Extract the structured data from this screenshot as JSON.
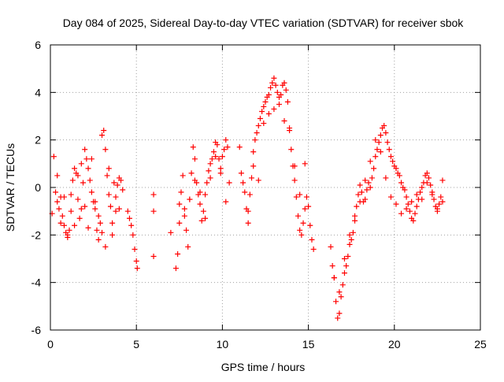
{
  "chart_data": {
    "type": "scatter",
    "title": "Day 084 of 2025, Sidereal Day-to-day VTEC variation (SDTVAR) for receiver sbok",
    "xlabel": "GPS time / hours",
    "ylabel": "SDTVAR / TECUs",
    "xlim": [
      0,
      25
    ],
    "ylim": [
      -6,
      6
    ],
    "x_ticks": [
      0,
      5,
      10,
      15,
      20,
      25
    ],
    "x_tick_labels": [
      "0",
      "5",
      "10",
      "15",
      "20",
      "25"
    ],
    "y_ticks": [
      -6,
      -4,
      -2,
      0,
      2,
      4,
      6
    ],
    "y_tick_labels": [
      "-6",
      "-4",
      "-2",
      "0",
      "2",
      "4",
      "6"
    ],
    "grid": true,
    "marker": "+",
    "color": "#ff0000",
    "series": [
      {
        "name": "SDTVAR",
        "x": [
          0.1,
          0.2,
          0.3,
          0.4,
          0.5,
          0.6,
          0.7,
          0.8,
          0.9,
          1.0,
          1.1,
          1.2,
          1.3,
          1.4,
          1.5,
          1.6,
          1.7,
          1.8,
          1.9,
          2.0,
          2.1,
          2.2,
          2.3,
          2.4,
          2.5,
          2.6,
          2.7,
          2.8,
          2.9,
          3.0,
          3.1,
          3.2,
          3.3,
          3.4,
          3.5,
          3.6,
          3.7,
          3.8,
          3.9,
          4.0,
          4.1,
          4.2,
          0.4,
          0.6,
          0.8,
          1.0,
          1.2,
          1.4,
          1.6,
          1.8,
          2.0,
          2.2,
          2.4,
          2.6,
          2.8,
          3.0,
          3.2,
          3.4,
          3.6,
          3.8,
          4.0,
          4.5,
          4.6,
          4.7,
          4.8,
          4.9,
          5.0,
          5.05,
          6.0,
          6.0,
          6.0,
          7.0,
          7.3,
          7.4,
          7.5,
          7.6,
          7.7,
          7.8,
          7.9,
          8.0,
          8.1,
          8.2,
          8.3,
          8.4,
          8.5,
          8.6,
          8.7,
          8.8,
          8.9,
          9.0,
          9.1,
          9.2,
          9.3,
          9.4,
          9.5,
          9.6,
          9.7,
          9.8,
          9.9,
          10.0,
          10.1,
          10.2,
          10.3,
          10.4,
          7.5,
          7.8,
          8.1,
          8.4,
          8.7,
          9.0,
          9.3,
          9.6,
          9.9,
          10.2,
          11.0,
          11.1,
          11.2,
          11.3,
          11.4,
          11.5,
          11.6,
          11.7,
          11.8,
          11.9,
          12.0,
          12.1,
          12.2,
          12.3,
          12.4,
          12.5,
          12.6,
          12.7,
          12.8,
          12.9,
          13.0,
          13.1,
          13.2,
          13.3,
          13.4,
          13.5,
          13.6,
          13.7,
          13.8,
          13.9,
          14.0,
          14.1,
          14.2,
          14.3,
          14.4,
          14.5,
          14.6,
          14.7,
          14.8,
          14.9,
          15.0,
          15.1,
          15.2,
          15.3,
          11.5,
          11.8,
          12.1,
          12.4,
          12.7,
          13.0,
          13.3,
          13.6,
          13.9,
          14.2,
          14.5,
          14.8,
          16.3,
          16.4,
          16.5,
          16.6,
          16.7,
          16.8,
          16.9,
          17.0,
          17.1,
          17.2,
          17.3,
          17.4,
          17.5,
          17.6,
          17.7,
          17.8,
          17.9,
          18.0,
          18.1,
          18.2,
          18.3,
          18.4,
          18.5,
          18.6,
          18.7,
          18.8,
          18.9,
          19.0,
          19.1,
          19.2,
          19.3,
          19.4,
          19.5,
          19.6,
          19.7,
          19.8,
          19.9,
          20.0,
          20.1,
          20.2,
          20.3,
          20.4,
          20.5,
          20.6,
          20.7,
          20.8,
          20.9,
          21.0,
          21.1,
          21.2,
          21.3,
          21.4,
          21.5,
          21.6,
          21.7,
          21.8,
          21.9,
          22.0,
          22.1,
          22.2,
          22.3,
          22.4,
          22.5,
          22.6,
          22.7,
          22.8,
          16.5,
          16.8,
          17.1,
          17.4,
          17.7,
          18.0,
          18.3,
          18.6,
          18.9,
          19.2,
          19.5,
          19.8,
          20.1,
          20.4,
          20.7,
          21.0,
          21.3,
          21.6,
          21.9,
          22.2,
          22.5,
          22.8
        ],
        "y": [
          -1.1,
          1.3,
          -0.2,
          -0.6,
          -0.9,
          -0.4,
          -1.2,
          -1.6,
          -1.9,
          -2.1,
          -1.8,
          -1.0,
          0.3,
          0.8,
          0.6,
          -0.5,
          -1.3,
          -0.9,
          0.2,
          1.6,
          1.2,
          0.8,
          0.3,
          -0.2,
          -0.6,
          -0.9,
          -1.8,
          -2.2,
          -1.5,
          2.2,
          2.4,
          1.6,
          0.5,
          -0.3,
          -0.8,
          -1.5,
          0.2,
          -0.4,
          0.1,
          -0.9,
          0.3,
          -0.1,
          0.5,
          -1.5,
          -0.4,
          -2.0,
          -0.3,
          -1.6,
          0.5,
          1.0,
          -0.8,
          -1.7,
          1.2,
          -0.6,
          -1.2,
          -1.9,
          -2.5,
          0.8,
          -2.0,
          -1.0,
          0.4,
          -1.0,
          -1.3,
          -1.6,
          -2.0,
          -2.6,
          -3.1,
          -3.4,
          -0.3,
          -1.0,
          -2.9,
          -1.9,
          -3.4,
          -2.8,
          -1.5,
          -0.2,
          0.5,
          -0.9,
          -1.8,
          -2.5,
          -0.5,
          0.6,
          1.7,
          1.2,
          0.2,
          -0.3,
          -0.7,
          -1.4,
          -1.0,
          -0.3,
          0.2,
          0.7,
          1.0,
          1.2,
          1.5,
          1.9,
          1.8,
          1.2,
          0.8,
          1.3,
          1.6,
          2.0,
          1.7,
          0.2,
          -0.7,
          -1.2,
          -0.5,
          0.3,
          -0.2,
          -1.3,
          0.4,
          1.3,
          0.6,
          -0.6,
          1.7,
          0.6,
          0.2,
          -0.2,
          -0.9,
          -1.5,
          -0.3,
          0.4,
          1.5,
          2.0,
          2.3,
          2.6,
          2.9,
          3.2,
          3.4,
          3.6,
          3.8,
          3.9,
          4.2,
          4.4,
          4.6,
          4.3,
          4.0,
          3.8,
          3.9,
          4.3,
          4.4,
          4.1,
          3.6,
          2.5,
          1.6,
          0.9,
          0.3,
          -0.4,
          -1.2,
          -1.8,
          -2.0,
          -1.5,
          -0.9,
          -0.4,
          -0.8,
          -1.6,
          -2.2,
          -2.6,
          -1.0,
          0.9,
          0.3,
          2.7,
          3.1,
          3.3,
          3.5,
          2.8,
          2.4,
          0.9,
          -0.3,
          1.0,
          -2.5,
          -3.3,
          -3.8,
          -4.8,
          -5.5,
          -5.3,
          -4.6,
          -4.1,
          -3.6,
          -3.3,
          -2.9,
          -2.4,
          -2.2,
          -1.9,
          -1.4,
          -0.8,
          -0.3,
          0.1,
          -0.2,
          -0.6,
          -0.5,
          -0.1,
          0.2,
          0.0,
          0.4,
          0.8,
          1.3,
          1.6,
          1.9,
          2.2,
          2.5,
          2.6,
          2.3,
          1.9,
          1.6,
          1.3,
          1.1,
          0.9,
          0.8,
          0.6,
          0.5,
          0.2,
          0.0,
          -0.1,
          -0.4,
          -0.7,
          -1.0,
          -1.3,
          -1.4,
          -1.1,
          -0.8,
          -0.5,
          -0.2,
          0.0,
          0.2,
          0.5,
          0.6,
          0.4,
          0.1,
          -0.3,
          -0.5,
          -0.8,
          -1.0,
          -0.7,
          -0.4,
          0.3,
          -3.8,
          -4.4,
          -3.0,
          -2.0,
          -1.2,
          -0.6,
          0.3,
          1.1,
          2.0,
          1.5,
          0.4,
          -0.4,
          -0.7,
          -1.1,
          -0.9,
          -0.6,
          -0.3,
          -0.5,
          0.2,
          -0.2,
          -0.9,
          -0.6
        ]
      }
    ]
  }
}
